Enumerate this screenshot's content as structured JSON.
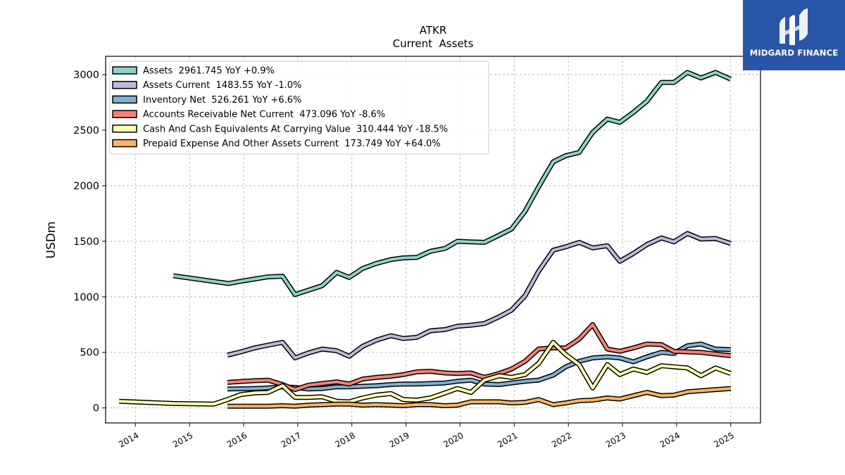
{
  "brand": {
    "name": "MIDGARD FINANCE",
    "color": "#2a56a8"
  },
  "chart_data": {
    "type": "line",
    "title": "ATKR",
    "subtitle": "Current  Assets",
    "xlabel": "",
    "ylabel": "USDm",
    "xlim": [
      2013.45,
      2025.55
    ],
    "ylim": [
      -135,
      3165
    ],
    "yticks": [
      0,
      500,
      1000,
      1500,
      2000,
      2500,
      3000
    ],
    "xticks": [
      "2014",
      "2015",
      "2016",
      "2017",
      "2018",
      "2019",
      "2020",
      "2021",
      "2022",
      "2023",
      "2024",
      "2025"
    ],
    "grid": true,
    "legend_position": "top-left",
    "series": [
      {
        "name": "Assets  2961.745 YoY +0.9%",
        "color": "#8dd3c7",
        "x": [
          2014.7,
          2015.72,
          2015.95,
          2016.2,
          2016.45,
          2016.72,
          2016.95,
          2017.2,
          2017.45,
          2017.72,
          2017.95,
          2018.2,
          2018.45,
          2018.72,
          2018.95,
          2019.2,
          2019.45,
          2019.72,
          2019.95,
          2020.2,
          2020.45,
          2020.72,
          2020.95,
          2021.2,
          2021.45,
          2021.72,
          2021.95,
          2022.2,
          2022.45,
          2022.72,
          2022.95,
          2023.2,
          2023.45,
          2023.72,
          2023.95,
          2024.2,
          2024.45,
          2024.72,
          2025.0
        ],
        "y": [
          1190,
          1120,
          1140,
          1160,
          1180,
          1185,
          1020,
          1060,
          1100,
          1220,
          1175,
          1255,
          1300,
          1335,
          1350,
          1355,
          1410,
          1435,
          1500,
          1495,
          1490,
          1555,
          1610,
          1770,
          1990,
          2215,
          2270,
          2300,
          2480,
          2600,
          2570,
          2660,
          2760,
          2930,
          2930,
          3020,
          2970,
          3020,
          2960
        ]
      },
      {
        "name": "Assets Current  1483.55 YoY -1.0%",
        "color": "#bebada",
        "x": [
          2015.7,
          2015.95,
          2016.2,
          2016.45,
          2016.72,
          2016.95,
          2017.2,
          2017.45,
          2017.72,
          2017.95,
          2018.2,
          2018.45,
          2018.72,
          2018.95,
          2019.2,
          2019.45,
          2019.72,
          2019.95,
          2020.2,
          2020.45,
          2020.72,
          2020.95,
          2021.2,
          2021.45,
          2021.72,
          2021.95,
          2022.2,
          2022.45,
          2022.72,
          2022.95,
          2023.2,
          2023.45,
          2023.72,
          2023.95,
          2024.2,
          2024.45,
          2024.72,
          2025.0
        ],
        "y": [
          475,
          505,
          540,
          565,
          590,
          450,
          495,
          530,
          515,
          465,
          555,
          610,
          650,
          625,
          635,
          695,
          705,
          735,
          745,
          760,
          820,
          880,
          1010,
          1230,
          1420,
          1450,
          1490,
          1440,
          1460,
          1320,
          1390,
          1470,
          1530,
          1495,
          1570,
          1520,
          1525,
          1480
        ]
      },
      {
        "name": "Inventory Net  526.261 YoY +6.6%",
        "color": "#80b1d3",
        "x": [
          2015.7,
          2015.95,
          2016.2,
          2016.45,
          2016.72,
          2016.95,
          2017.2,
          2017.45,
          2017.72,
          2017.95,
          2018.2,
          2018.45,
          2018.72,
          2018.95,
          2019.2,
          2019.45,
          2019.72,
          2019.95,
          2020.2,
          2020.45,
          2020.72,
          2020.95,
          2021.2,
          2021.45,
          2021.72,
          2021.95,
          2022.2,
          2022.45,
          2022.72,
          2022.95,
          2023.2,
          2023.45,
          2023.72,
          2023.95,
          2024.2,
          2024.45,
          2024.72,
          2025.0
        ],
        "y": [
          170,
          172,
          175,
          180,
          190,
          185,
          170,
          175,
          190,
          190,
          195,
          200,
          210,
          215,
          215,
          220,
          225,
          240,
          250,
          215,
          210,
          225,
          240,
          250,
          295,
          370,
          420,
          450,
          460,
          450,
          415,
          460,
          500,
          490,
          560,
          575,
          530,
          525
        ]
      },
      {
        "name": "Accounts Receivable Net Current  473.096 YoY -8.6%",
        "color": "#fb8072",
        "x": [
          2015.7,
          2015.95,
          2016.2,
          2016.45,
          2016.72,
          2016.95,
          2017.2,
          2017.45,
          2017.72,
          2017.95,
          2018.2,
          2018.45,
          2018.72,
          2018.95,
          2019.2,
          2019.45,
          2019.72,
          2019.95,
          2020.2,
          2020.45,
          2020.72,
          2020.95,
          2021.2,
          2021.45,
          2021.72,
          2021.95,
          2022.2,
          2022.45,
          2022.72,
          2022.95,
          2023.2,
          2023.45,
          2023.72,
          2023.95,
          2024.2,
          2024.45,
          2024.72,
          2025.0
        ],
        "y": [
          230,
          238,
          245,
          250,
          210,
          165,
          205,
          220,
          235,
          215,
          260,
          275,
          285,
          300,
          325,
          330,
          315,
          310,
          315,
          275,
          310,
          350,
          420,
          530,
          540,
          540,
          620,
          750,
          530,
          510,
          540,
          575,
          570,
          510,
          505,
          500,
          485,
          470
        ]
      },
      {
        "name": "Cash And Cash Equivalents At Carrying Value  310.444 YoY -18.5%",
        "color": "#ffffb3",
        "x": [
          2013.7,
          2014.7,
          2015.45,
          2015.7,
          2015.95,
          2016.2,
          2016.45,
          2016.72,
          2016.95,
          2017.2,
          2017.45,
          2017.72,
          2017.95,
          2018.2,
          2018.45,
          2018.72,
          2018.95,
          2019.2,
          2019.45,
          2019.72,
          2019.95,
          2020.2,
          2020.45,
          2020.72,
          2020.95,
          2021.2,
          2021.45,
          2021.72,
          2021.95,
          2022.2,
          2022.45,
          2022.72,
          2022.95,
          2023.2,
          2023.45,
          2023.72,
          2023.95,
          2024.2,
          2024.45,
          2024.72,
          2025.0
        ],
        "y": [
          60,
          40,
          35,
          75,
          120,
          135,
          140,
          200,
          95,
          95,
          100,
          60,
          55,
          90,
          115,
          130,
          75,
          70,
          90,
          135,
          175,
          140,
          250,
          290,
          275,
          300,
          400,
          590,
          480,
          390,
          180,
          390,
          300,
          350,
          320,
          380,
          370,
          360,
          290,
          360,
          310
        ]
      },
      {
        "name": "Prepaid Expense And Other Assets Current  173.749 YoY +64.0%",
        "color": "#fdb462",
        "x": [
          2015.7,
          2015.95,
          2016.2,
          2016.45,
          2016.72,
          2016.95,
          2017.2,
          2017.45,
          2017.72,
          2017.95,
          2018.2,
          2018.45,
          2018.72,
          2018.95,
          2019.2,
          2019.45,
          2019.72,
          2019.95,
          2020.2,
          2020.45,
          2020.72,
          2020.95,
          2021.2,
          2021.45,
          2021.72,
          2021.95,
          2022.2,
          2022.45,
          2022.72,
          2022.95,
          2023.2,
          2023.45,
          2023.72,
          2023.95,
          2024.2,
          2024.45,
          2024.72,
          2025.0
        ],
        "y": [
          15,
          15,
          15,
          15,
          20,
          15,
          25,
          30,
          35,
          35,
          25,
          30,
          25,
          20,
          30,
          30,
          20,
          25,
          55,
          55,
          55,
          45,
          50,
          75,
          30,
          45,
          65,
          70,
          90,
          80,
          110,
          140,
          110,
          115,
          145,
          155,
          165,
          175
        ]
      }
    ]
  }
}
